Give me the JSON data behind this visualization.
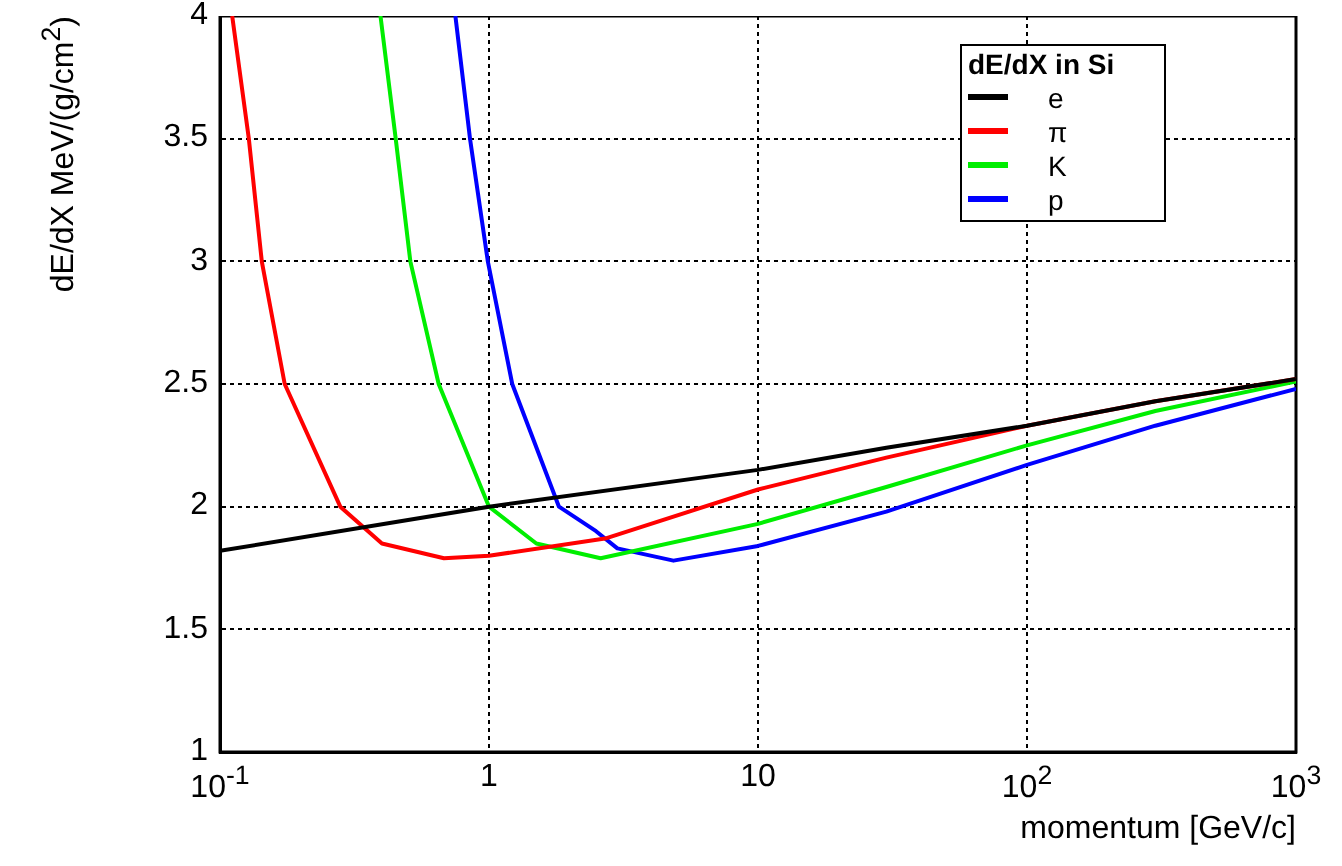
{
  "chart_data": {
    "type": "line",
    "xlabel": "momentum [GeV/c]",
    "ylabel": "dE/dX  MeV/(g/cm$^{2}$)",
    "legend_title": "dE/dX in Si",
    "log": "x",
    "grid": true,
    "legend": "top right",
    "marker": "none",
    "line_style": "solid",
    "xlim": [
      0.1,
      1000
    ],
    "xticks": [
      {
        "value": 0.1,
        "label": "10$^{-1}$"
      },
      1,
      10,
      {
        "value": 100,
        "label": "10$^{2}$"
      },
      {
        "value": 1000,
        "label": "10$^{3}$"
      }
    ],
    "ylim": [
      1,
      4
    ],
    "yticks": [
      1,
      1.5,
      2,
      2.5,
      3,
      3.5,
      4
    ],
    "series": [
      {
        "name": "e",
        "color": "#000000",
        "x": [
          0.1,
          1,
          10,
          30,
          100,
          300,
          1000
        ],
        "values": [
          1.82,
          2.0,
          2.15,
          2.24,
          2.33,
          2.43,
          2.52
        ]
      },
      {
        "name": "π",
        "color": "#ff0000",
        "x": [
          0.111,
          0.128,
          0.143,
          0.174,
          0.28,
          0.4,
          0.68,
          1,
          2.7,
          10,
          30,
          100,
          300,
          1000
        ],
        "values": [
          4,
          3.5,
          3,
          2.5,
          2.0,
          1.85,
          1.79,
          1.8,
          1.87,
          2.07,
          2.2,
          2.33,
          2.43,
          2.52
        ]
      },
      {
        "name": "K",
        "color": "#00ee00",
        "x": [
          0.395,
          0.45,
          0.51,
          0.65,
          1,
          1.5,
          2.6,
          10,
          30,
          100,
          300,
          1000
        ],
        "values": [
          4,
          3.5,
          3,
          2.5,
          2.0,
          1.85,
          1.79,
          1.93,
          2.08,
          2.25,
          2.39,
          2.51
        ]
      },
      {
        "name": "p",
        "color": "#0000ff",
        "x": [
          0.75,
          0.85,
          0.99,
          1.22,
          1.82,
          2.5,
          3,
          4.85,
          10,
          30,
          100,
          300,
          1000
        ],
        "values": [
          4,
          3.5,
          3,
          2.5,
          2.0,
          1.9,
          1.83,
          1.78,
          1.84,
          1.98,
          2.17,
          2.33,
          2.48
        ]
      }
    ]
  }
}
